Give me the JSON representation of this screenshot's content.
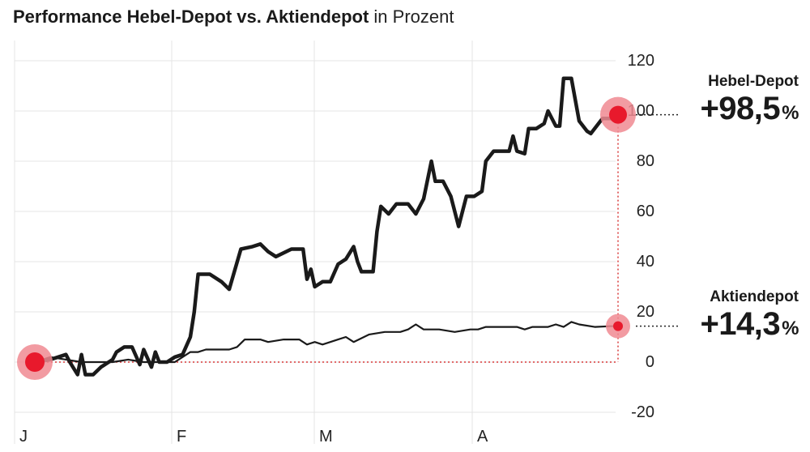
{
  "header": {
    "title_bold": "Performance  Hebel-Depot vs. Aktiendepot",
    "title_light": "in Prozent"
  },
  "labels": {
    "hebel_name": "Hebel-Depot",
    "hebel_value": "+98,5",
    "aktien_name": "Aktiendepot",
    "aktien_value": "+14,3",
    "percent_sign": "%"
  },
  "chart_data": {
    "type": "line",
    "title": "Performance  Hebel-Depot vs. Aktiendepot in Prozent",
    "xlabel": "",
    "ylabel": "",
    "x_tick_labels": [
      "J",
      "F",
      "M",
      "A"
    ],
    "y_ticks": [
      120,
      100,
      80,
      60,
      40,
      20,
      0,
      -20
    ],
    "ylim": [
      -20,
      120
    ],
    "grid": true,
    "colors": {
      "line": "#1a1a1a",
      "marker": "#e8192c",
      "marker_halo": "#f08a92",
      "guide": "#d93a3a"
    },
    "series": [
      {
        "name": "Hebel-Depot",
        "end_value": 98.5,
        "points": [
          [
            0,
            0
          ],
          [
            0.02,
            1
          ],
          [
            0.03,
            2
          ],
          [
            0.04,
            3
          ],
          [
            0.045,
            0
          ],
          [
            0.055,
            -5
          ],
          [
            0.06,
            3
          ],
          [
            0.065,
            -5
          ],
          [
            0.075,
            -5
          ],
          [
            0.085,
            -2
          ],
          [
            0.09,
            -1
          ],
          [
            0.1,
            1
          ],
          [
            0.105,
            4
          ],
          [
            0.115,
            6
          ],
          [
            0.125,
            6
          ],
          [
            0.135,
            -1
          ],
          [
            0.14,
            5
          ],
          [
            0.15,
            -2
          ],
          [
            0.155,
            4
          ],
          [
            0.16,
            0
          ],
          [
            0.17,
            0
          ],
          [
            0.18,
            2
          ],
          [
            0.19,
            3
          ],
          [
            0.2,
            10
          ],
          [
            0.205,
            20
          ],
          [
            0.21,
            35
          ],
          [
            0.225,
            35
          ],
          [
            0.24,
            32
          ],
          [
            0.25,
            29
          ],
          [
            0.265,
            45
          ],
          [
            0.28,
            46
          ],
          [
            0.29,
            47
          ],
          [
            0.3,
            44
          ],
          [
            0.31,
            42
          ],
          [
            0.33,
            45
          ],
          [
            0.345,
            45
          ],
          [
            0.35,
            33
          ],
          [
            0.355,
            37
          ],
          [
            0.36,
            30
          ],
          [
            0.37,
            32
          ],
          [
            0.38,
            32
          ],
          [
            0.39,
            39
          ],
          [
            0.4,
            41
          ],
          [
            0.41,
            46
          ],
          [
            0.415,
            40
          ],
          [
            0.42,
            36
          ],
          [
            0.435,
            36
          ],
          [
            0.44,
            52
          ],
          [
            0.445,
            62
          ],
          [
            0.455,
            59
          ],
          [
            0.465,
            63
          ],
          [
            0.48,
            63
          ],
          [
            0.49,
            59
          ],
          [
            0.5,
            65
          ],
          [
            0.51,
            80
          ],
          [
            0.515,
            72
          ],
          [
            0.525,
            72
          ],
          [
            0.535,
            66
          ],
          [
            0.545,
            54
          ],
          [
            0.555,
            66
          ],
          [
            0.565,
            66
          ],
          [
            0.575,
            68
          ],
          [
            0.58,
            80
          ],
          [
            0.59,
            84
          ],
          [
            0.61,
            84
          ],
          [
            0.615,
            90
          ],
          [
            0.62,
            84
          ],
          [
            0.63,
            83
          ],
          [
            0.635,
            93
          ],
          [
            0.645,
            93
          ],
          [
            0.655,
            95
          ],
          [
            0.66,
            100
          ],
          [
            0.67,
            94
          ],
          [
            0.675,
            94
          ],
          [
            0.68,
            113
          ],
          [
            0.69,
            113
          ],
          [
            0.7,
            96
          ],
          [
            0.71,
            92
          ],
          [
            0.715,
            91
          ],
          [
            0.73,
            97
          ],
          [
            0.74,
            97
          ],
          [
            0.75,
            98.5
          ]
        ]
      },
      {
        "name": "Aktiendepot",
        "end_value": 14.3,
        "points": [
          [
            0,
            0
          ],
          [
            0.02,
            2
          ],
          [
            0.04,
            1
          ],
          [
            0.06,
            0
          ],
          [
            0.08,
            0
          ],
          [
            0.1,
            0
          ],
          [
            0.12,
            1
          ],
          [
            0.14,
            0
          ],
          [
            0.16,
            0
          ],
          [
            0.18,
            0
          ],
          [
            0.19,
            2
          ],
          [
            0.2,
            4
          ],
          [
            0.21,
            4
          ],
          [
            0.22,
            5
          ],
          [
            0.24,
            5
          ],
          [
            0.25,
            5
          ],
          [
            0.26,
            6
          ],
          [
            0.27,
            9
          ],
          [
            0.29,
            9
          ],
          [
            0.3,
            8
          ],
          [
            0.32,
            9
          ],
          [
            0.34,
            9
          ],
          [
            0.35,
            7
          ],
          [
            0.36,
            8
          ],
          [
            0.37,
            7
          ],
          [
            0.39,
            9
          ],
          [
            0.4,
            10
          ],
          [
            0.41,
            8
          ],
          [
            0.43,
            11
          ],
          [
            0.45,
            12
          ],
          [
            0.47,
            12
          ],
          [
            0.48,
            13
          ],
          [
            0.49,
            15
          ],
          [
            0.5,
            13
          ],
          [
            0.52,
            13
          ],
          [
            0.54,
            12
          ],
          [
            0.56,
            13
          ],
          [
            0.57,
            13
          ],
          [
            0.58,
            14
          ],
          [
            0.6,
            14
          ],
          [
            0.62,
            14
          ],
          [
            0.63,
            13
          ],
          [
            0.64,
            14
          ],
          [
            0.66,
            14
          ],
          [
            0.67,
            15
          ],
          [
            0.68,
            14
          ],
          [
            0.69,
            16
          ],
          [
            0.7,
            15
          ],
          [
            0.72,
            14
          ],
          [
            0.74,
            14.3
          ],
          [
            0.75,
            14.3
          ]
        ]
      }
    ]
  }
}
